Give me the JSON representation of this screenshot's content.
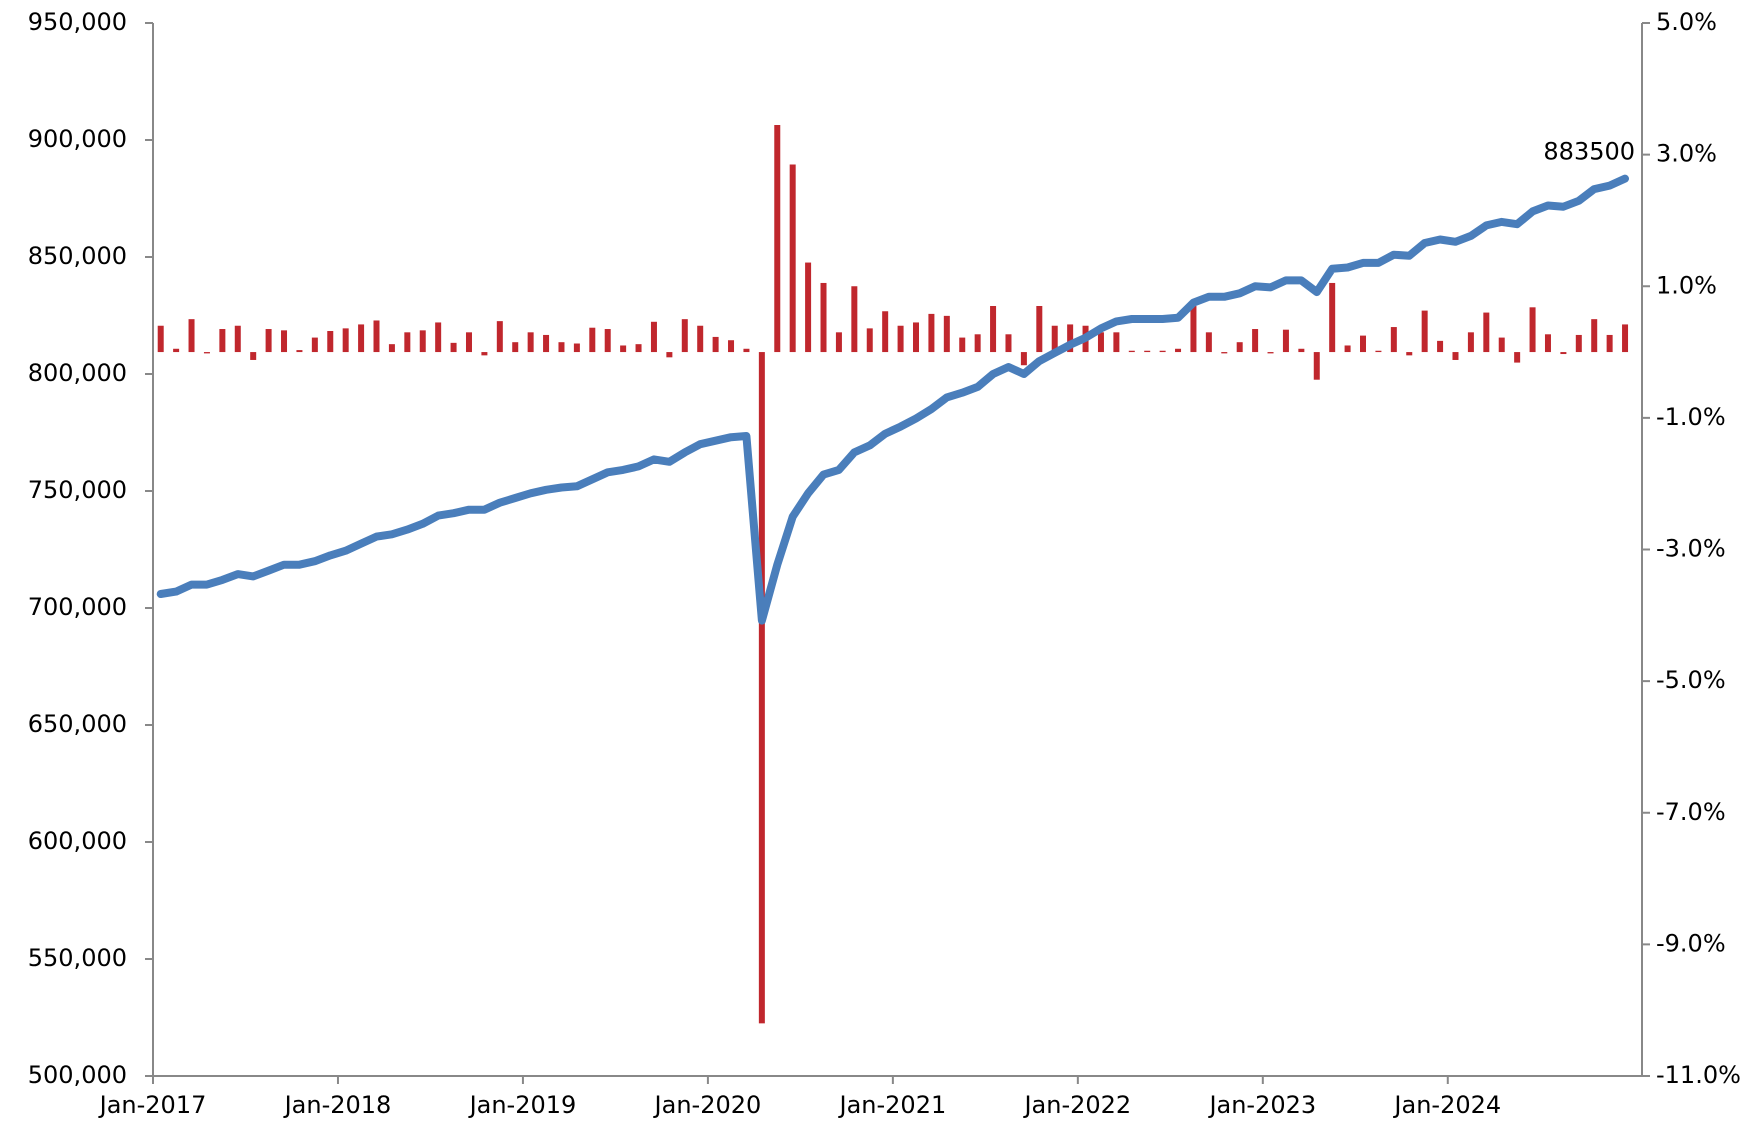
{
  "chart_data": {
    "type": "combo",
    "categories": [
      "Jan-2017",
      null,
      null,
      null,
      null,
      null,
      null,
      null,
      null,
      null,
      null,
      null,
      "Jan-2018",
      null,
      null,
      null,
      null,
      null,
      null,
      null,
      null,
      null,
      null,
      null,
      "Jan-2019",
      null,
      null,
      null,
      null,
      null,
      null,
      null,
      null,
      null,
      null,
      null,
      "Jan-2020",
      null,
      null,
      null,
      null,
      null,
      null,
      null,
      null,
      null,
      null,
      null,
      "Jan-2021",
      null,
      null,
      null,
      null,
      null,
      null,
      null,
      null,
      null,
      null,
      null,
      "Jan-2022",
      null,
      null,
      null,
      null,
      null,
      null,
      null,
      null,
      null,
      null,
      null,
      "Jan-2023",
      null,
      null,
      null,
      null,
      null,
      null,
      null,
      null,
      null,
      null,
      null,
      "Jan-2024",
      null,
      null,
      null,
      null,
      null,
      null,
      null,
      null,
      null,
      null,
      null
    ],
    "series": [
      {
        "type": "line",
        "color": "#4a7ebb",
        "values": [
          706000,
          707000,
          710000,
          710000,
          712000,
          714500,
          713500,
          716000,
          718500,
          718500,
          720000,
          722500,
          724500,
          727500,
          730500,
          731500,
          733500,
          736000,
          739500,
          740500,
          742000,
          742000,
          745000,
          747000,
          749000,
          750500,
          751500,
          752000,
          755000,
          758000,
          759000,
          760500,
          763500,
          762500,
          766500,
          770000,
          771500,
          773000,
          773500,
          694600,
          718500,
          739000,
          749000,
          757000,
          759000,
          766500,
          769500,
          774500,
          777500,
          781000,
          785000,
          790000,
          792000,
          794500,
          800000,
          803000,
          800000,
          805500,
          809000,
          812500,
          815500,
          819500,
          822500,
          823500,
          823500,
          823500,
          824000,
          830500,
          833000,
          833000,
          834500,
          837500,
          837000,
          840000,
          840000,
          835000,
          845000,
          845500,
          847500,
          847500,
          851000,
          850500,
          856000,
          857500,
          856500,
          859000,
          863500,
          865000,
          864000,
          869500,
          872000,
          871500,
          874000,
          879000,
          880500,
          883500
        ]
      },
      {
        "type": "bar",
        "axis": "y2",
        "color": "#c0272d",
        "values": [
          0.4,
          0.05,
          0.5,
          -0.02,
          0.35,
          0.4,
          -0.12,
          0.35,
          0.33,
          0.03,
          0.22,
          0.32,
          0.36,
          0.42,
          0.48,
          0.12,
          0.3,
          0.33,
          0.45,
          0.14,
          0.3,
          -0.05,
          0.47,
          0.15,
          0.3,
          0.26,
          0.15,
          0.13,
          0.37,
          0.35,
          0.1,
          0.12,
          0.46,
          -0.08,
          0.5,
          0.4,
          0.23,
          0.18,
          0.05,
          -10.2,
          3.45,
          2.85,
          1.36,
          1.05,
          0.3,
          1.0,
          0.36,
          0.62,
          0.4,
          0.45,
          0.58,
          0.55,
          0.22,
          0.27,
          0.7,
          0.27,
          -0.2,
          0.7,
          0.4,
          0.42,
          0.4,
          0.3,
          0.3,
          0.02,
          0.02,
          0.02,
          0.05,
          0.7,
          0.3,
          -0.02,
          0.15,
          0.35,
          -0.02,
          0.34,
          0.05,
          -0.42,
          1.05,
          0.1,
          0.25,
          0.02,
          0.38,
          -0.05,
          0.63,
          0.17,
          -0.12,
          0.3,
          0.6,
          0.22,
          -0.16,
          0.68,
          0.27,
          -0.03,
          0.26,
          0.5,
          0.26,
          0.42
        ]
      }
    ],
    "ylim": [
      500000,
      950000
    ],
    "yticks": [
      {
        "value": 500000,
        "label": "500,000"
      },
      {
        "value": 550000,
        "label": "550,000"
      },
      {
        "value": 600000,
        "label": "600,000"
      },
      {
        "value": 650000,
        "label": "650,000"
      },
      {
        "value": 700000,
        "label": "700,000"
      },
      {
        "value": 750000,
        "label": "750,000"
      },
      {
        "value": 800000,
        "label": "800,000"
      },
      {
        "value": 850000,
        "label": "850,000"
      },
      {
        "value": 900000,
        "label": "900,000"
      },
      {
        "value": 950000,
        "label": "950,000"
      }
    ],
    "y2lim": [
      -11,
      5
    ],
    "y2ticks": [
      {
        "value": -11,
        "label": "-11.0%"
      },
      {
        "value": -9,
        "label": "-9.0%"
      },
      {
        "value": -7,
        "label": "-7.0%"
      },
      {
        "value": -5,
        "label": "-5.0%"
      },
      {
        "value": -3,
        "label": "-3.0%"
      },
      {
        "value": -1,
        "label": "-1.0%"
      },
      {
        "value": 1,
        "label": "1.0%"
      },
      {
        "value": 3,
        "label": "3.0%"
      },
      {
        "value": 5,
        "label": "5.0%"
      }
    ],
    "end_label_index": 95
  }
}
